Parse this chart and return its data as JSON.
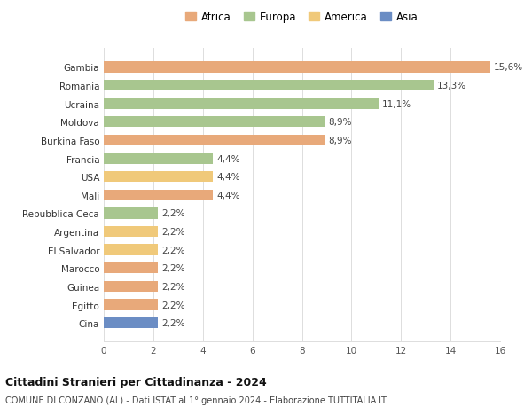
{
  "countries": [
    "Cina",
    "Egitto",
    "Guinea",
    "Marocco",
    "El Salvador",
    "Argentina",
    "Repubblica Ceca",
    "Mali",
    "USA",
    "Francia",
    "Burkina Faso",
    "Moldova",
    "Ucraina",
    "Romania",
    "Gambia"
  ],
  "values": [
    2.2,
    2.2,
    2.2,
    2.2,
    2.2,
    2.2,
    2.2,
    4.4,
    4.4,
    4.4,
    8.9,
    8.9,
    11.1,
    13.3,
    15.6
  ],
  "labels": [
    "2,2%",
    "2,2%",
    "2,2%",
    "2,2%",
    "2,2%",
    "2,2%",
    "2,2%",
    "4,4%",
    "4,4%",
    "4,4%",
    "8,9%",
    "8,9%",
    "11,1%",
    "13,3%",
    "15,6%"
  ],
  "colors": [
    "#6b8dc4",
    "#e8a97a",
    "#e8a97a",
    "#e8a97a",
    "#f0c97a",
    "#f0c97a",
    "#a8c68f",
    "#e8a97a",
    "#f0c97a",
    "#a8c68f",
    "#e8a97a",
    "#a8c68f",
    "#a8c68f",
    "#a8c68f",
    "#e8a97a"
  ],
  "legend": [
    {
      "label": "Africa",
      "color": "#e8a97a"
    },
    {
      "label": "Europa",
      "color": "#a8c68f"
    },
    {
      "label": "America",
      "color": "#f0c97a"
    },
    {
      "label": "Asia",
      "color": "#6b8dc4"
    }
  ],
  "title": "Cittadini Stranieri per Cittadinanza - 2024",
  "subtitle": "COMUNE DI CONZANO (AL) - Dati ISTAT al 1° gennaio 2024 - Elaborazione TUTTITALIA.IT",
  "xlim": [
    0,
    16
  ],
  "xticks": [
    0,
    2,
    4,
    6,
    8,
    10,
    12,
    14,
    16
  ],
  "background_color": "#ffffff",
  "grid_color": "#dddddd"
}
